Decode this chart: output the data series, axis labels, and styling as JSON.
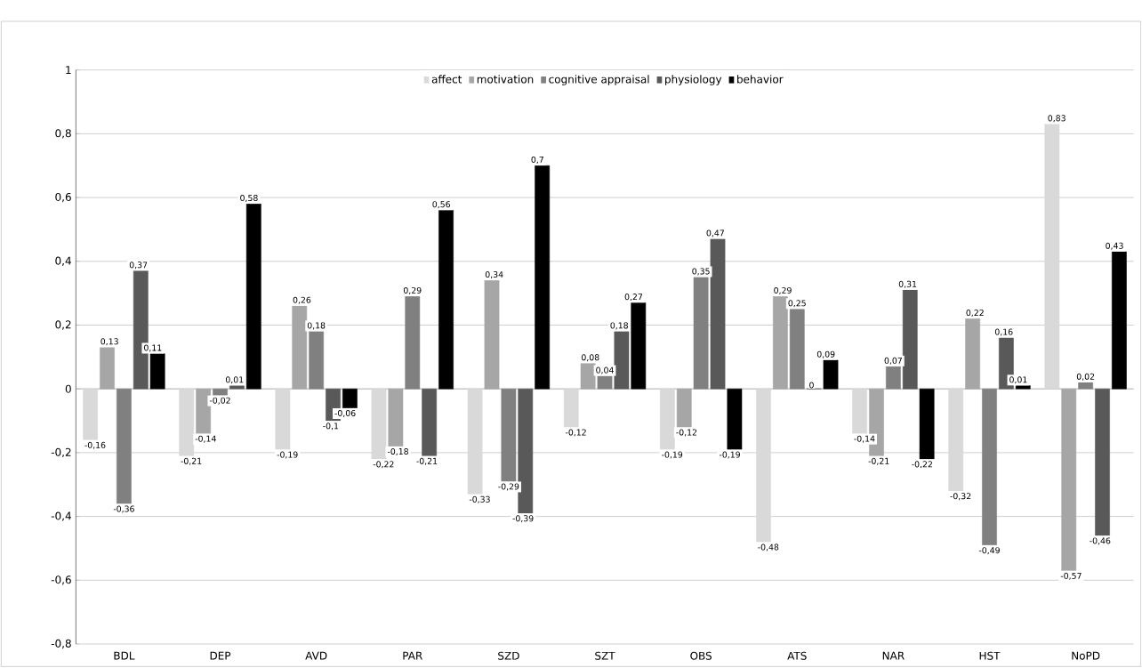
{
  "chart_data": {
    "type": "bar",
    "categories": [
      "BDL",
      "DEP",
      "AVD",
      "PAR",
      "SZD",
      "SZT",
      "OBS",
      "ATS",
      "NAR",
      "HST",
      "NoPD"
    ],
    "series": [
      {
        "name": "affect",
        "color": "#d9d9d9",
        "values": [
          -0.16,
          -0.21,
          -0.19,
          -0.22,
          -0.33,
          -0.12,
          -0.19,
          -0.48,
          -0.14,
          -0.32,
          0.83
        ],
        "value_labels": [
          "-0,16",
          "-0,21",
          "-0,19",
          "-0,22",
          "-0,33",
          "-0,12",
          "-0,19",
          "-0,48",
          "-0,14",
          "-0,32",
          "0,83"
        ]
      },
      {
        "name": "motivation",
        "color": "#a6a6a6",
        "values": [
          0.13,
          -0.14,
          0.26,
          -0.18,
          0.34,
          0.08,
          -0.12,
          0.29,
          -0.21,
          0.22,
          -0.57
        ],
        "value_labels": [
          "0,13",
          "-0,14",
          "0,26",
          "-0,18",
          "0,34",
          "0,08",
          "-0,12",
          "0,29",
          "-0,21",
          "0,22",
          "-0,57"
        ]
      },
      {
        "name": "cognitive appraisal",
        "color": "#808080",
        "values": [
          -0.36,
          -0.02,
          0.18,
          0.29,
          -0.29,
          0.04,
          0.35,
          0.25,
          0.07,
          -0.49,
          0.02
        ],
        "value_labels": [
          "-0,36",
          "-0,02",
          "0,18",
          "0,29",
          "-0,29",
          "0,04",
          "0,35",
          "0,25",
          "0,07",
          "-0,49",
          "0,02"
        ]
      },
      {
        "name": "physiology",
        "color": "#595959",
        "values": [
          0.37,
          0.01,
          -0.1,
          -0.21,
          -0.39,
          0.18,
          0.47,
          0,
          0.31,
          0.16,
          -0.46
        ],
        "value_labels": [
          "0,37",
          "0,01",
          "-0,1",
          "-0,21",
          "-0,39",
          "0,18",
          "0,47",
          "0",
          "0,31",
          "0,16",
          "-0,46"
        ]
      },
      {
        "name": "behavior",
        "color": "#000000",
        "values": [
          0.11,
          0.58,
          -0.06,
          0.56,
          0.7,
          0.27,
          -0.19,
          0.09,
          -0.22,
          0.01,
          0.43
        ],
        "value_labels": [
          "0,11",
          "0,58",
          "-0,06",
          "0,56",
          "0,7",
          "0,27",
          "-0,19",
          "0,09",
          "-0,22",
          "0,01",
          "0,43"
        ]
      }
    ],
    "ylim": [
      -0.8,
      1
    ],
    "yticks": [
      {
        "value": -0.8,
        "label": "-0,8"
      },
      {
        "value": -0.6,
        "label": "-0,6"
      },
      {
        "value": -0.4,
        "label": "-0,4"
      },
      {
        "value": -0.2,
        "label": "-0,2"
      },
      0,
      {
        "value": 0.2,
        "label": "0,2"
      },
      {
        "value": 0.4,
        "label": "0,4"
      },
      {
        "value": 0.6,
        "label": "0,6"
      },
      {
        "value": 0.8,
        "label": "0,8"
      },
      1
    ],
    "grid": "y",
    "legend": "top"
  }
}
